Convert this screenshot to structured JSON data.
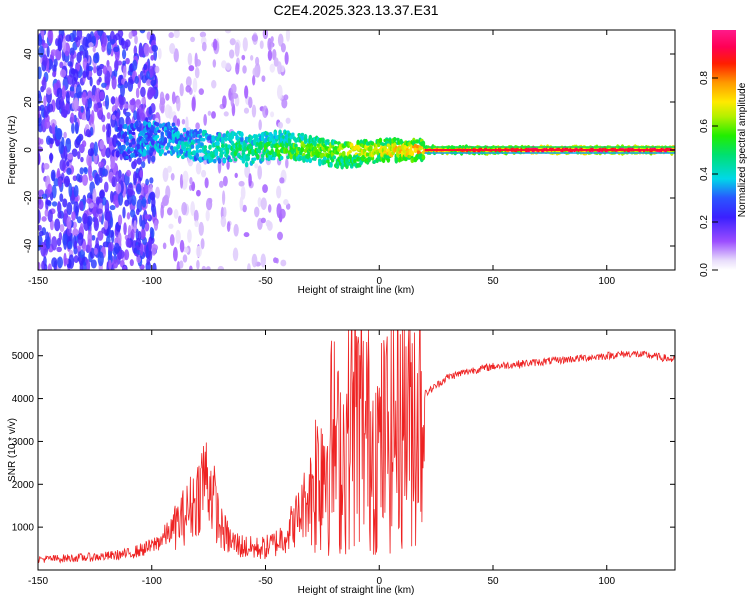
{
  "title": "C2E4.2025.323.13.37.E31",
  "chart_data": [
    {
      "type": "heatmap",
      "name": "spectrogram",
      "xlabel": "Height of straight line (km)",
      "ylabel": "Frequency (Hz)",
      "xlim": [
        -150,
        130
      ],
      "ylim": [
        -50,
        50
      ],
      "x_ticks": [
        -150,
        -100,
        -50,
        0,
        50,
        100
      ],
      "y_ticks": [
        -40,
        -20,
        0,
        20,
        40
      ],
      "colorbar": {
        "label": "Normalized spectral amplitude",
        "range": [
          0,
          1
        ],
        "ticks": [
          0.0,
          0.2,
          0.4,
          0.6,
          0.8
        ]
      },
      "features": [
        {
          "label": "broadband noise",
          "x_range": [
            -150,
            -98
          ],
          "freq_range": [
            -50,
            50
          ],
          "amplitude": 0.25
        },
        {
          "label": "sparse noise",
          "x_range": [
            -98,
            -40
          ],
          "freq_range": [
            -50,
            50
          ],
          "amplitude": 0.1
        },
        {
          "label": "central band",
          "x_range": [
            -115,
            130
          ],
          "center_freq": 0,
          "amplitude_range": [
            0.35,
            1.0
          ]
        }
      ]
    },
    {
      "type": "line",
      "name": "snr",
      "xlabel": "Height of straight line (km)",
      "ylabel": "SNR (10 * v/v)",
      "xlim": [
        -150,
        130
      ],
      "ylim": [
        0,
        5600
      ],
      "x_ticks": [
        -150,
        -100,
        -50,
        0,
        50,
        100
      ],
      "y_ticks": [
        1000,
        2000,
        3000,
        4000,
        5000
      ],
      "color": "#ee2222",
      "series": [
        {
          "name": "SNR",
          "x": [
            -150,
            -140,
            -130,
            -120,
            -110,
            -100,
            -95,
            -90,
            -85,
            -80,
            -77,
            -75,
            -72,
            -70,
            -65,
            -60,
            -55,
            -50,
            -45,
            -40,
            -35,
            -30,
            -25,
            -20,
            -18,
            -15,
            -12,
            -10,
            -5,
            0,
            5,
            10,
            15,
            20,
            25,
            30,
            40,
            50,
            60,
            70,
            80,
            90,
            100,
            110,
            120,
            130
          ],
          "y": [
            250,
            270,
            290,
            320,
            380,
            550,
            750,
            1000,
            1300,
            1700,
            2200,
            2100,
            1500,
            1000,
            650,
            550,
            500,
            520,
            650,
            900,
            1300,
            1900,
            2600,
            3000,
            2600,
            2800,
            3800,
            3600,
            3200,
            2800,
            3300,
            3800,
            3700,
            4100,
            4300,
            4500,
            4650,
            4750,
            4800,
            4850,
            4900,
            4950,
            5000,
            5050,
            5000,
            4900
          ]
        }
      ]
    }
  ]
}
